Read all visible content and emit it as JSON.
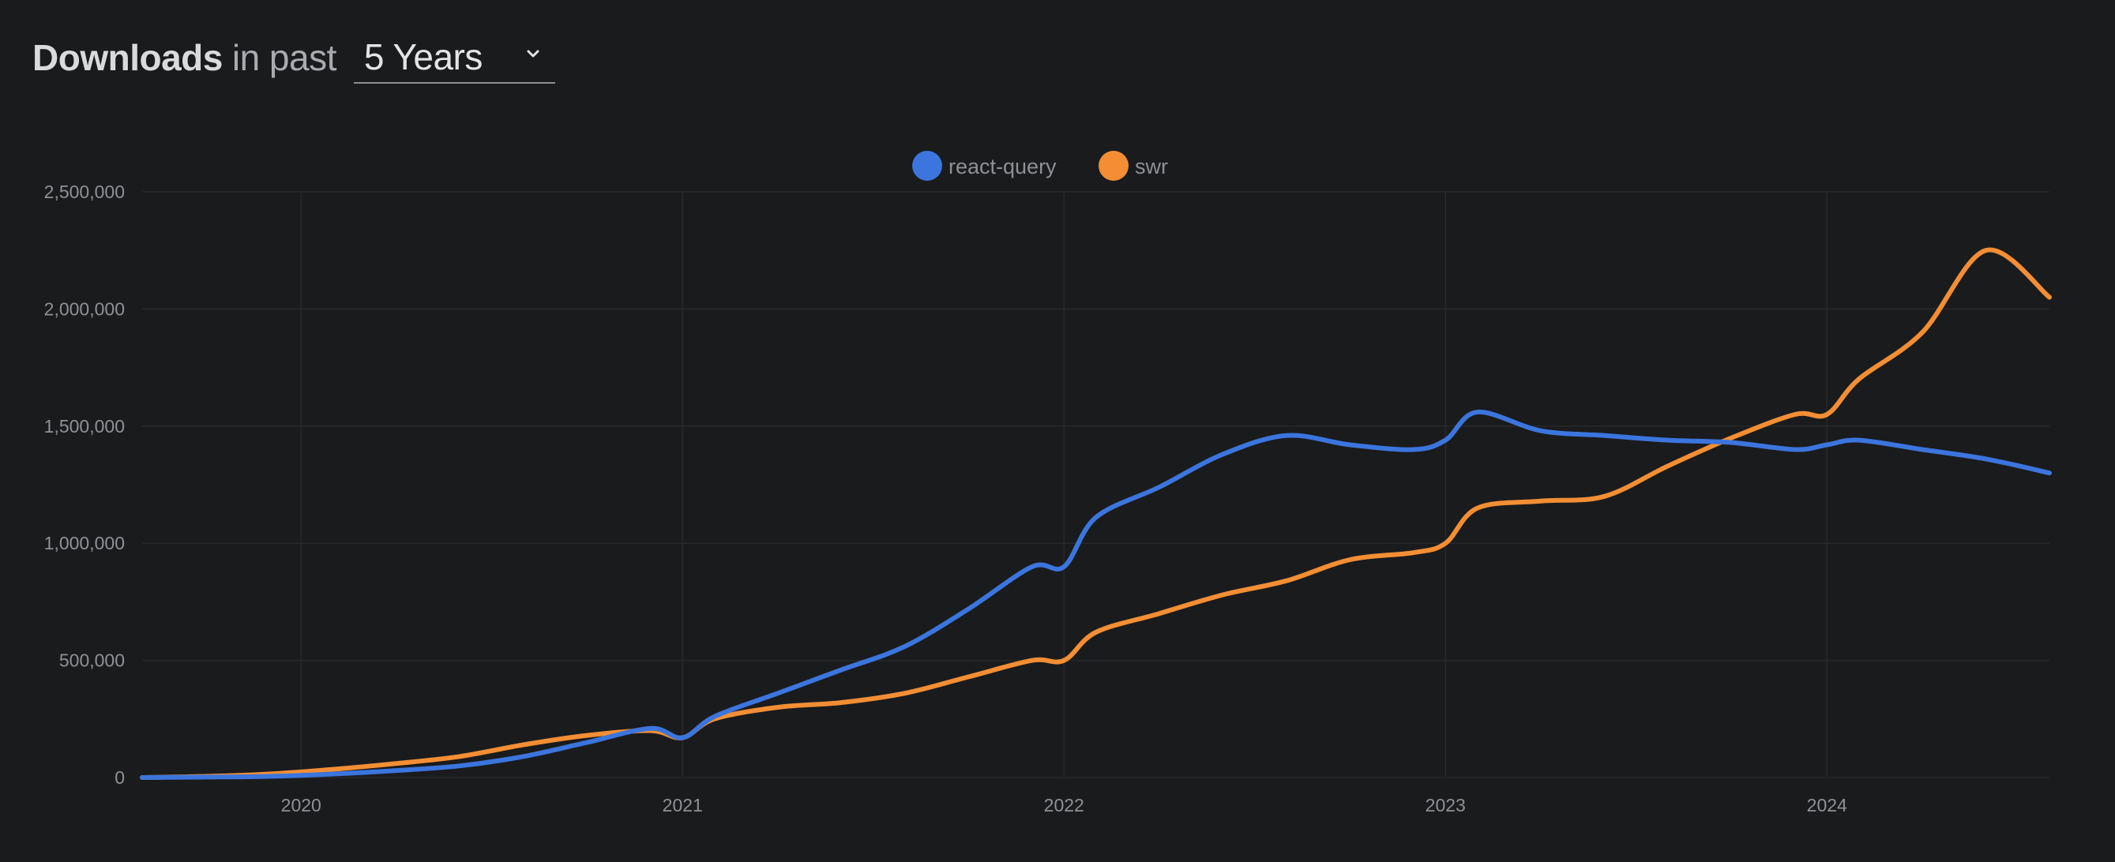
{
  "header": {
    "title_strong": "Downloads",
    "title_soft": "in past",
    "period": {
      "selected": "5 Years"
    }
  },
  "colors": {
    "background": "#1a1b1d",
    "react_query": "#3b75dd",
    "swr": "#f38e34",
    "grid": "#27282b",
    "tick_text": "#8f9195"
  },
  "chart_data": {
    "type": "line",
    "title": "",
    "xlabel": "",
    "ylabel": "",
    "ylim": [
      0,
      2500000
    ],
    "yticks": [
      "0",
      "500,000",
      "1,000,000",
      "1,500,000",
      "2,000,000",
      "2,500,000"
    ],
    "xlim": [
      "2019-08",
      "2024-08"
    ],
    "xticks": [
      "2020",
      "2021",
      "2022",
      "2023",
      "2024"
    ],
    "legend": {
      "position": "top-center",
      "entries": [
        "react-query",
        "swr"
      ]
    },
    "grid": true,
    "x": [
      "2019-08",
      "2019-10",
      "2019-12",
      "2020-02",
      "2020-04",
      "2020-06",
      "2020-08",
      "2020-10",
      "2020-12",
      "2021-01",
      "2021-02",
      "2021-04",
      "2021-06",
      "2021-08",
      "2021-10",
      "2021-12",
      "2022-01",
      "2022-02",
      "2022-04",
      "2022-06",
      "2022-08",
      "2022-10",
      "2022-12",
      "2023-01",
      "2023-02",
      "2023-04",
      "2023-06",
      "2023-08",
      "2023-10",
      "2023-12",
      "2024-01",
      "2024-02",
      "2024-04",
      "2024-06",
      "2024-08"
    ],
    "series": [
      {
        "name": "react-query",
        "values": [
          0,
          2000,
          5000,
          15000,
          30000,
          50000,
          90000,
          150000,
          210000,
          170000,
          260000,
          360000,
          460000,
          560000,
          720000,
          900000,
          900000,
          1110000,
          1240000,
          1380000,
          1460000,
          1420000,
          1400000,
          1440000,
          1560000,
          1480000,
          1460000,
          1440000,
          1430000,
          1400000,
          1420000,
          1440000,
          1400000,
          1360000,
          1300000
        ]
      },
      {
        "name": "swr",
        "values": [
          0,
          5000,
          15000,
          35000,
          60000,
          90000,
          140000,
          180000,
          200000,
          170000,
          250000,
          300000,
          320000,
          360000,
          430000,
          500000,
          500000,
          620000,
          700000,
          780000,
          840000,
          930000,
          960000,
          1000000,
          1150000,
          1180000,
          1200000,
          1330000,
          1450000,
          1550000,
          1550000,
          1700000,
          1900000,
          2250000,
          2050000
        ]
      }
    ]
  }
}
